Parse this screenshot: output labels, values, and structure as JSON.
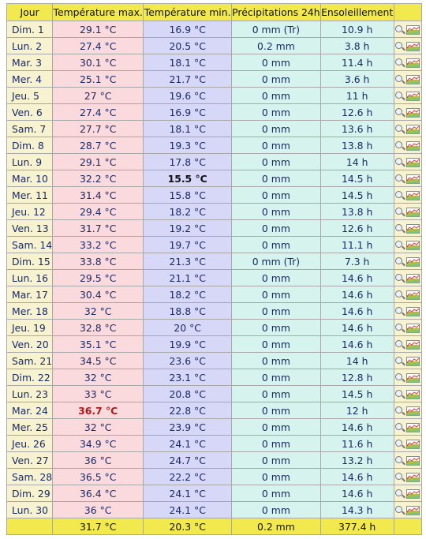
{
  "headers": {
    "day": "Jour",
    "tmax": "Température max.",
    "tmin": "Température min.",
    "precip": "Précipitations 24h",
    "sun": "Ensoleillement"
  },
  "rows": [
    {
      "day": "Dim. 1",
      "tmax": "29.1 °C",
      "tmin": "16.9 °C",
      "precip": "0 mm (Tr)",
      "sun": "10.9 h"
    },
    {
      "day": "Lun. 2",
      "tmax": "27.4 °C",
      "tmin": "20.5 °C",
      "precip": "0.2 mm",
      "sun": "3.8 h"
    },
    {
      "day": "Mar. 3",
      "tmax": "30.1 °C",
      "tmin": "18.1 °C",
      "precip": "0 mm",
      "sun": "11.4 h"
    },
    {
      "day": "Mer. 4",
      "tmax": "25.1 °C",
      "tmin": "21.7 °C",
      "precip": "0 mm",
      "sun": "3.6 h"
    },
    {
      "day": "Jeu. 5",
      "tmax": "27 °C",
      "tmin": "19.6 °C",
      "precip": "0 mm",
      "sun": "11 h"
    },
    {
      "day": "Ven. 6",
      "tmax": "27.4 °C",
      "tmin": "16.9 °C",
      "precip": "0 mm",
      "sun": "12.6 h"
    },
    {
      "day": "Sam. 7",
      "tmax": "27.7 °C",
      "tmin": "18.1 °C",
      "precip": "0 mm",
      "sun": "13.6 h"
    },
    {
      "day": "Dim. 8",
      "tmax": "28.7 °C",
      "tmin": "19.3 °C",
      "precip": "0 mm",
      "sun": "13.8 h"
    },
    {
      "day": "Lun. 9",
      "tmax": "29.1 °C",
      "tmin": "17.8 °C",
      "precip": "0 mm",
      "sun": "14 h"
    },
    {
      "day": "Mar. 10",
      "tmax": "32.2 °C",
      "tmin": "15.5 °C",
      "tmin_highlight": "cold",
      "precip": "0 mm",
      "sun": "14.5 h"
    },
    {
      "day": "Mer. 11",
      "tmax": "31.4 °C",
      "tmin": "15.8 °C",
      "precip": "0 mm",
      "sun": "14.5 h"
    },
    {
      "day": "Jeu. 12",
      "tmax": "29.4 °C",
      "tmin": "18.2 °C",
      "precip": "0 mm",
      "sun": "13.8 h"
    },
    {
      "day": "Ven. 13",
      "tmax": "31.7 °C",
      "tmin": "19.2 °C",
      "precip": "0 mm",
      "sun": "12.6 h"
    },
    {
      "day": "Sam. 14",
      "tmax": "33.2 °C",
      "tmin": "19.7 °C",
      "precip": "0 mm",
      "sun": "11.1 h"
    },
    {
      "day": "Dim. 15",
      "tmax": "33.8 °C",
      "tmin": "21.3 °C",
      "precip": "0 mm (Tr)",
      "sun": "7.3 h"
    },
    {
      "day": "Lun. 16",
      "tmax": "29.5 °C",
      "tmin": "21.1 °C",
      "precip": "0 mm",
      "sun": "14.6 h"
    },
    {
      "day": "Mar. 17",
      "tmax": "30.4 °C",
      "tmin": "18.2 °C",
      "precip": "0 mm",
      "sun": "14.6 h"
    },
    {
      "day": "Mer. 18",
      "tmax": "32 °C",
      "tmin": "18.8 °C",
      "precip": "0 mm",
      "sun": "14.6 h"
    },
    {
      "day": "Jeu. 19",
      "tmax": "32.8 °C",
      "tmin": "20 °C",
      "precip": "0 mm",
      "sun": "14.6 h"
    },
    {
      "day": "Ven. 20",
      "tmax": "35.1 °C",
      "tmin": "19.9 °C",
      "precip": "0 mm",
      "sun": "14.6 h"
    },
    {
      "day": "Sam. 21",
      "tmax": "34.5 °C",
      "tmin": "23.6 °C",
      "precip": "0 mm",
      "sun": "14 h"
    },
    {
      "day": "Dim. 22",
      "tmax": "32 °C",
      "tmin": "23.1 °C",
      "precip": "0 mm",
      "sun": "12.8 h"
    },
    {
      "day": "Lun. 23",
      "tmax": "33 °C",
      "tmin": "20.8 °C",
      "precip": "0 mm",
      "sun": "14.5 h"
    },
    {
      "day": "Mar. 24",
      "tmax": "36.7 °C",
      "tmax_highlight": "hot",
      "tmin": "22.8 °C",
      "precip": "0 mm",
      "sun": "12 h"
    },
    {
      "day": "Mer. 25",
      "tmax": "32 °C",
      "tmin": "23.9 °C",
      "precip": "0 mm",
      "sun": "14.6 h"
    },
    {
      "day": "Jeu. 26",
      "tmax": "34.9 °C",
      "tmin": "24.1 °C",
      "precip": "0 mm",
      "sun": "11.6 h"
    },
    {
      "day": "Ven. 27",
      "tmax": "36 °C",
      "tmin": "24.7 °C",
      "precip": "0 mm",
      "sun": "13.2 h"
    },
    {
      "day": "Sam. 28",
      "tmax": "36.5 °C",
      "tmin": "22.2 °C",
      "precip": "0 mm",
      "sun": "14.6 h"
    },
    {
      "day": "Dim. 29",
      "tmax": "36.4 °C",
      "tmin": "24.1 °C",
      "precip": "0 mm",
      "sun": "14.6 h"
    },
    {
      "day": "Lun. 30",
      "tmax": "36 °C",
      "tmin": "24.1 °C",
      "precip": "0 mm",
      "sun": "14.3 h"
    }
  ],
  "totals": {
    "tmax": "31.7 °C",
    "tmin": "20.3 °C",
    "precip": "0.2 mm",
    "sun": "377.4 h"
  },
  "row_icons": [
    "magnifier-icon",
    "chart-thumbnail-icon"
  ],
  "colors": {
    "header_bg": "#f2e94e",
    "day_bg": "#f7f3d0",
    "tmax_bg": "#fadadd",
    "tmin_bg": "#d7d7f8",
    "precip_bg": "#d6f3ee",
    "text": "#1a2a66",
    "hot_text": "#b01818"
  }
}
